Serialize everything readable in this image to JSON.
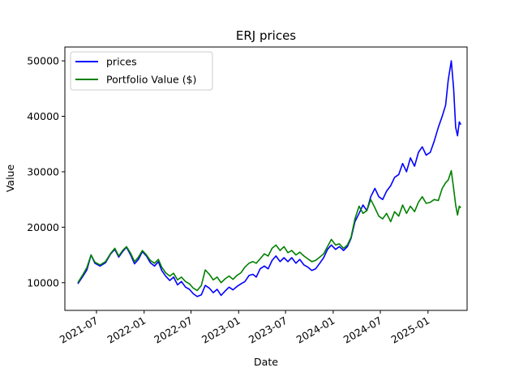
{
  "chart_data": {
    "type": "line",
    "title": "ERJ prices",
    "xlabel": "Date",
    "ylabel": "Value",
    "x_tick_labels": [
      "2021-07",
      "2022-01",
      "2022-07",
      "2023-01",
      "2023-07",
      "2024-01",
      "2024-07",
      "2025-01"
    ],
    "y_tick_labels": [
      "10000",
      "20000",
      "30000",
      "40000",
      "50000"
    ],
    "xlim": [
      "2021-03-01",
      "2025-06-01"
    ],
    "ylim": [
      5000,
      52500
    ],
    "grid": false,
    "legend_position": "upper-left",
    "series": [
      {
        "name": "prices",
        "color": "#0000ff",
        "points": [
          [
            "2021-04-20",
            9800
          ],
          [
            "2021-05-10",
            11200
          ],
          [
            "2021-05-25",
            12300
          ],
          [
            "2021-06-10",
            15000
          ],
          [
            "2021-06-25",
            13500
          ],
          [
            "2021-07-15",
            13000
          ],
          [
            "2021-08-05",
            13600
          ],
          [
            "2021-08-25",
            15200
          ],
          [
            "2021-09-10",
            16000
          ],
          [
            "2021-09-25",
            14600
          ],
          [
            "2021-10-10",
            15600
          ],
          [
            "2021-10-25",
            16400
          ],
          [
            "2021-11-10",
            15000
          ],
          [
            "2021-11-25",
            13400
          ],
          [
            "2021-12-10",
            14200
          ],
          [
            "2021-12-25",
            15600
          ],
          [
            "2022-01-10",
            14800
          ],
          [
            "2022-01-25",
            13600
          ],
          [
            "2022-02-10",
            13000
          ],
          [
            "2022-02-25",
            13800
          ],
          [
            "2022-03-10",
            12200
          ],
          [
            "2022-03-25",
            11200
          ],
          [
            "2022-04-10",
            10400
          ],
          [
            "2022-04-25",
            11000
          ],
          [
            "2022-05-10",
            9600
          ],
          [
            "2022-05-25",
            10200
          ],
          [
            "2022-06-10",
            9200
          ],
          [
            "2022-06-25",
            8800
          ],
          [
            "2022-07-10",
            8000
          ],
          [
            "2022-07-25",
            7500
          ],
          [
            "2022-08-10",
            7800
          ],
          [
            "2022-08-25",
            9500
          ],
          [
            "2022-09-10",
            9000
          ],
          [
            "2022-09-25",
            8200
          ],
          [
            "2022-10-10",
            8800
          ],
          [
            "2022-10-25",
            7700
          ],
          [
            "2022-11-10",
            8500
          ],
          [
            "2022-11-25",
            9200
          ],
          [
            "2022-12-10",
            8700
          ],
          [
            "2022-12-25",
            9300
          ],
          [
            "2023-01-10",
            9800
          ],
          [
            "2023-01-25",
            10200
          ],
          [
            "2023-02-10",
            11300
          ],
          [
            "2023-02-25",
            11500
          ],
          [
            "2023-03-10",
            11000
          ],
          [
            "2023-03-25",
            12500
          ],
          [
            "2023-04-10",
            13000
          ],
          [
            "2023-04-25",
            12500
          ],
          [
            "2023-05-10",
            14000
          ],
          [
            "2023-05-25",
            14800
          ],
          [
            "2023-06-10",
            13800
          ],
          [
            "2023-06-25",
            14500
          ],
          [
            "2023-07-10",
            13800
          ],
          [
            "2023-07-25",
            14500
          ],
          [
            "2023-08-10",
            13500
          ],
          [
            "2023-08-25",
            14200
          ],
          [
            "2023-09-10",
            13200
          ],
          [
            "2023-09-25",
            12800
          ],
          [
            "2023-10-10",
            12200
          ],
          [
            "2023-10-25",
            12500
          ],
          [
            "2023-11-10",
            13500
          ],
          [
            "2023-11-25",
            14500
          ],
          [
            "2023-12-10",
            16000
          ],
          [
            "2023-12-25",
            16800
          ],
          [
            "2024-01-10",
            16000
          ],
          [
            "2024-01-25",
            16500
          ],
          [
            "2024-02-10",
            15800
          ],
          [
            "2024-02-25",
            16500
          ],
          [
            "2024-03-10",
            18000
          ],
          [
            "2024-03-25",
            21000
          ],
          [
            "2024-04-10",
            22500
          ],
          [
            "2024-04-25",
            24000
          ],
          [
            "2024-05-10",
            23000
          ],
          [
            "2024-05-25",
            25500
          ],
          [
            "2024-06-10",
            27000
          ],
          [
            "2024-06-25",
            25500
          ],
          [
            "2024-07-10",
            25000
          ],
          [
            "2024-07-25",
            26500
          ],
          [
            "2024-08-10",
            27500
          ],
          [
            "2024-08-25",
            29000
          ],
          [
            "2024-09-10",
            29500
          ],
          [
            "2024-09-25",
            31500
          ],
          [
            "2024-10-10",
            30000
          ],
          [
            "2024-10-25",
            32500
          ],
          [
            "2024-11-10",
            31000
          ],
          [
            "2024-11-25",
            33500
          ],
          [
            "2024-12-10",
            34500
          ],
          [
            "2024-12-25",
            33000
          ],
          [
            "2025-01-10",
            33500
          ],
          [
            "2025-01-25",
            35500
          ],
          [
            "2025-02-10",
            38000
          ],
          [
            "2025-02-25",
            40000
          ],
          [
            "2025-03-10",
            42000
          ],
          [
            "2025-03-20",
            46500
          ],
          [
            "2025-04-01",
            50000
          ],
          [
            "2025-04-10",
            45000
          ],
          [
            "2025-04-18",
            38000
          ],
          [
            "2025-04-25",
            36500
          ],
          [
            "2025-05-02",
            39000
          ],
          [
            "2025-05-08",
            38500
          ]
        ]
      },
      {
        "name": "Portfolio Value ($)",
        "color": "#008000",
        "points": [
          [
            "2021-04-20",
            10000
          ],
          [
            "2021-05-10",
            11500
          ],
          [
            "2021-05-25",
            12700
          ],
          [
            "2021-06-10",
            15000
          ],
          [
            "2021-06-25",
            13700
          ],
          [
            "2021-07-15",
            13200
          ],
          [
            "2021-08-05",
            13800
          ],
          [
            "2021-08-25",
            15300
          ],
          [
            "2021-09-10",
            16200
          ],
          [
            "2021-09-25",
            14800
          ],
          [
            "2021-10-10",
            15800
          ],
          [
            "2021-10-25",
            16500
          ],
          [
            "2021-11-10",
            15300
          ],
          [
            "2021-11-25",
            13800
          ],
          [
            "2021-12-10",
            14600
          ],
          [
            "2021-12-25",
            15800
          ],
          [
            "2022-01-10",
            15000
          ],
          [
            "2022-01-25",
            14000
          ],
          [
            "2022-02-10",
            13500
          ],
          [
            "2022-02-25",
            14200
          ],
          [
            "2022-03-10",
            12800
          ],
          [
            "2022-03-25",
            11800
          ],
          [
            "2022-04-10",
            11200
          ],
          [
            "2022-04-25",
            11700
          ],
          [
            "2022-05-10",
            10500
          ],
          [
            "2022-05-25",
            11000
          ],
          [
            "2022-06-10",
            10200
          ],
          [
            "2022-06-25",
            9800
          ],
          [
            "2022-07-10",
            9000
          ],
          [
            "2022-07-25",
            8600
          ],
          [
            "2022-08-10",
            9500
          ],
          [
            "2022-08-25",
            12300
          ],
          [
            "2022-09-10",
            11500
          ],
          [
            "2022-09-25",
            10500
          ],
          [
            "2022-10-10",
            11000
          ],
          [
            "2022-10-25",
            10000
          ],
          [
            "2022-11-10",
            10700
          ],
          [
            "2022-11-25",
            11200
          ],
          [
            "2022-12-10",
            10600
          ],
          [
            "2022-12-25",
            11300
          ],
          [
            "2023-01-10",
            11800
          ],
          [
            "2023-01-25",
            12800
          ],
          [
            "2023-02-10",
            13500
          ],
          [
            "2023-02-25",
            13800
          ],
          [
            "2023-03-10",
            13500
          ],
          [
            "2023-03-25",
            14300
          ],
          [
            "2023-04-10",
            15200
          ],
          [
            "2023-04-25",
            14800
          ],
          [
            "2023-05-10",
            16200
          ],
          [
            "2023-05-25",
            16800
          ],
          [
            "2023-06-10",
            15800
          ],
          [
            "2023-06-25",
            16500
          ],
          [
            "2023-07-10",
            15400
          ],
          [
            "2023-07-25",
            15800
          ],
          [
            "2023-08-10",
            15000
          ],
          [
            "2023-08-25",
            15500
          ],
          [
            "2023-09-10",
            14800
          ],
          [
            "2023-09-25",
            14300
          ],
          [
            "2023-10-10",
            13800
          ],
          [
            "2023-10-25",
            14000
          ],
          [
            "2023-11-10",
            14600
          ],
          [
            "2023-11-25",
            15200
          ],
          [
            "2023-12-10",
            16500
          ],
          [
            "2023-12-25",
            17800
          ],
          [
            "2024-01-10",
            16800
          ],
          [
            "2024-01-25",
            17000
          ],
          [
            "2024-02-10",
            16200
          ],
          [
            "2024-02-25",
            16800
          ],
          [
            "2024-03-10",
            18200
          ],
          [
            "2024-03-25",
            21500
          ],
          [
            "2024-04-10",
            23800
          ],
          [
            "2024-04-25",
            22500
          ],
          [
            "2024-05-10",
            23000
          ],
          [
            "2024-05-25",
            25000
          ],
          [
            "2024-06-10",
            23500
          ],
          [
            "2024-06-25",
            22000
          ],
          [
            "2024-07-10",
            21500
          ],
          [
            "2024-07-25",
            22500
          ],
          [
            "2024-08-10",
            21000
          ],
          [
            "2024-08-25",
            22800
          ],
          [
            "2024-09-10",
            22000
          ],
          [
            "2024-09-25",
            24000
          ],
          [
            "2024-10-10",
            22500
          ],
          [
            "2024-10-25",
            23800
          ],
          [
            "2024-11-10",
            22800
          ],
          [
            "2024-11-25",
            24500
          ],
          [
            "2024-12-10",
            25500
          ],
          [
            "2024-12-25",
            24300
          ],
          [
            "2025-01-10",
            24500
          ],
          [
            "2025-01-25",
            25000
          ],
          [
            "2025-02-10",
            24800
          ],
          [
            "2025-02-25",
            27000
          ],
          [
            "2025-03-10",
            28000
          ],
          [
            "2025-03-20",
            28500
          ],
          [
            "2025-04-01",
            30200
          ],
          [
            "2025-04-10",
            27000
          ],
          [
            "2025-04-18",
            24000
          ],
          [
            "2025-04-25",
            22200
          ],
          [
            "2025-05-02",
            23800
          ],
          [
            "2025-05-08",
            23500
          ]
        ]
      }
    ]
  }
}
